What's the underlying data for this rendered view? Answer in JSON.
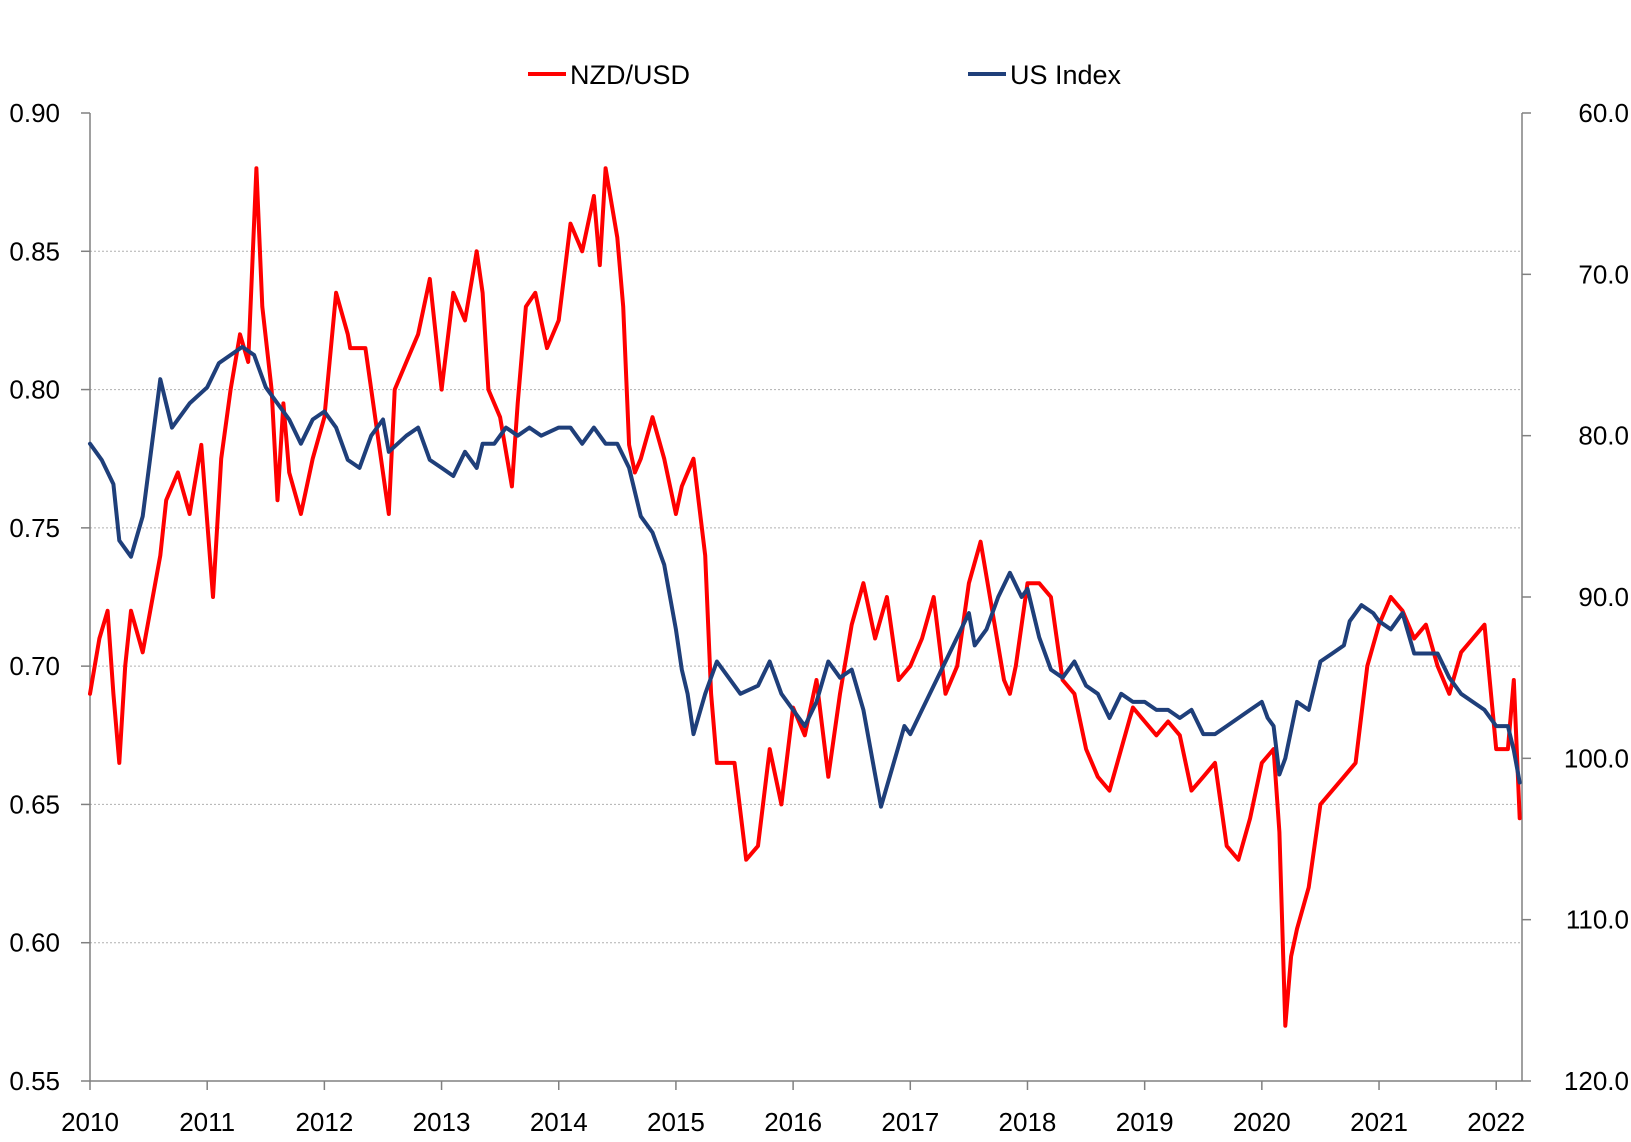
{
  "chart_data": {
    "type": "line",
    "title": "",
    "xlabel": "",
    "ylabel": "",
    "legend": {
      "placement": "top-center"
    },
    "grid": true,
    "x_axis": {
      "range": [
        2010.0,
        2022.22
      ],
      "ticks": [
        "2010",
        "2011",
        "2012",
        "2013",
        "2014",
        "2015",
        "2016",
        "2017",
        "2018",
        "2019",
        "2020",
        "2021",
        "2022"
      ]
    },
    "y_left": {
      "range": [
        0.55,
        0.9
      ],
      "ticks": [
        "0.90",
        "0.85",
        "0.80",
        "0.75",
        "0.70",
        "0.65",
        "0.60",
        "0.55"
      ]
    },
    "y_right": {
      "range": [
        60.0,
        120.0
      ],
      "inverted": true,
      "ticks": [
        "60.0",
        "70.0",
        "80.0",
        "90.0",
        "100.0",
        "110.0",
        "120.0"
      ]
    },
    "series": [
      {
        "name": "NZD/USD",
        "axis": "left",
        "color": "#ff0000",
        "x": [
          2010.0,
          2010.08,
          2010.15,
          2010.2,
          2010.25,
          2010.3,
          2010.35,
          2010.45,
          2010.6,
          2010.65,
          2010.75,
          2010.85,
          2010.95,
          2011.05,
          2011.12,
          2011.2,
          2011.28,
          2011.35,
          2011.42,
          2011.47,
          2011.55,
          2011.6,
          2011.65,
          2011.7,
          2011.8,
          2011.9,
          2012.0,
          2012.1,
          2012.2,
          2012.22,
          2012.35,
          2012.45,
          2012.55,
          2012.6,
          2012.7,
          2012.8,
          2012.9,
          2013.0,
          2013.1,
          2013.2,
          2013.3,
          2013.35,
          2013.4,
          2013.5,
          2013.6,
          2013.65,
          2013.72,
          2013.8,
          2013.9,
          2014.0,
          2014.1,
          2014.2,
          2014.3,
          2014.35,
          2014.4,
          2014.5,
          2014.55,
          2014.6,
          2014.65,
          2014.7,
          2014.8,
          2014.9,
          2015.0,
          2015.05,
          2015.15,
          2015.25,
          2015.3,
          2015.35,
          2015.5,
          2015.6,
          2015.7,
          2015.8,
          2015.9,
          2016.0,
          2016.1,
          2016.2,
          2016.3,
          2016.4,
          2016.5,
          2016.6,
          2016.7,
          2016.8,
          2016.9,
          2017.0,
          2017.1,
          2017.2,
          2017.3,
          2017.4,
          2017.5,
          2017.6,
          2017.7,
          2017.8,
          2017.85,
          2017.9,
          2018.0,
          2018.1,
          2018.2,
          2018.3,
          2018.4,
          2018.5,
          2018.6,
          2018.7,
          2018.8,
          2018.9,
          2019.0,
          2019.1,
          2019.2,
          2019.3,
          2019.4,
          2019.5,
          2019.6,
          2019.7,
          2019.8,
          2019.9,
          2020.0,
          2020.1,
          2020.15,
          2020.2,
          2020.25,
          2020.3,
          2020.4,
          2020.5,
          2020.6,
          2020.7,
          2020.8,
          2020.9,
          2021.0,
          2021.1,
          2021.2,
          2021.3,
          2021.4,
          2021.5,
          2021.6,
          2021.7,
          2021.8,
          2021.9,
          2022.0,
          2022.1,
          2022.15,
          2022.2
        ],
        "values": [
          0.69,
          0.71,
          0.72,
          0.69,
          0.665,
          0.7,
          0.72,
          0.705,
          0.74,
          0.76,
          0.77,
          0.755,
          0.78,
          0.725,
          0.775,
          0.8,
          0.82,
          0.81,
          0.88,
          0.83,
          0.8,
          0.76,
          0.795,
          0.77,
          0.755,
          0.775,
          0.79,
          0.835,
          0.82,
          0.815,
          0.815,
          0.785,
          0.755,
          0.8,
          0.81,
          0.82,
          0.84,
          0.8,
          0.835,
          0.825,
          0.85,
          0.835,
          0.8,
          0.79,
          0.765,
          0.795,
          0.83,
          0.835,
          0.815,
          0.825,
          0.86,
          0.85,
          0.87,
          0.845,
          0.88,
          0.855,
          0.83,
          0.78,
          0.77,
          0.775,
          0.79,
          0.775,
          0.755,
          0.765,
          0.775,
          0.74,
          0.69,
          0.665,
          0.665,
          0.63,
          0.635,
          0.67,
          0.65,
          0.685,
          0.675,
          0.695,
          0.66,
          0.69,
          0.715,
          0.73,
          0.71,
          0.725,
          0.695,
          0.7,
          0.71,
          0.725,
          0.69,
          0.7,
          0.73,
          0.745,
          0.72,
          0.695,
          0.69,
          0.7,
          0.73,
          0.73,
          0.725,
          0.695,
          0.69,
          0.67,
          0.66,
          0.655,
          0.67,
          0.685,
          0.68,
          0.675,
          0.68,
          0.675,
          0.655,
          0.66,
          0.665,
          0.635,
          0.63,
          0.645,
          0.665,
          0.67,
          0.64,
          0.57,
          0.595,
          0.605,
          0.62,
          0.65,
          0.655,
          0.66,
          0.665,
          0.7,
          0.715,
          0.725,
          0.72,
          0.71,
          0.715,
          0.7,
          0.69,
          0.705,
          0.71,
          0.715,
          0.67,
          0.67,
          0.695,
          0.645
        ]
      },
      {
        "name": "US Index",
        "axis": "right",
        "color": "#1f3f7a",
        "x": [
          2010.0,
          2010.1,
          2010.2,
          2010.25,
          2010.35,
          2010.45,
          2010.6,
          2010.7,
          2010.85,
          2011.0,
          2011.1,
          2011.2,
          2011.3,
          2011.4,
          2011.5,
          2011.6,
          2011.7,
          2011.8,
          2011.9,
          2012.0,
          2012.1,
          2012.2,
          2012.3,
          2012.4,
          2012.5,
          2012.55,
          2012.7,
          2012.8,
          2012.9,
          2013.0,
          2013.1,
          2013.2,
          2013.3,
          2013.35,
          2013.45,
          2013.55,
          2013.65,
          2013.75,
          2013.85,
          2014.0,
          2014.1,
          2014.2,
          2014.3,
          2014.4,
          2014.5,
          2014.6,
          2014.7,
          2014.8,
          2014.9,
          2015.0,
          2015.05,
          2015.1,
          2015.15,
          2015.25,
          2015.35,
          2015.45,
          2015.55,
          2015.7,
          2015.8,
          2015.9,
          2016.0,
          2016.1,
          2016.2,
          2016.3,
          2016.4,
          2016.5,
          2016.6,
          2016.7,
          2016.75,
          2016.85,
          2016.95,
          2017.0,
          2017.1,
          2017.2,
          2017.3,
          2017.4,
          2017.5,
          2017.55,
          2017.65,
          2017.75,
          2017.85,
          2017.95,
          2018.0,
          2018.1,
          2018.2,
          2018.3,
          2018.4,
          2018.5,
          2018.6,
          2018.7,
          2018.8,
          2018.9,
          2019.0,
          2019.1,
          2019.2,
          2019.3,
          2019.4,
          2019.5,
          2019.6,
          2019.7,
          2019.8,
          2019.9,
          2020.0,
          2020.05,
          2020.1,
          2020.15,
          2020.2,
          2020.3,
          2020.4,
          2020.5,
          2020.6,
          2020.7,
          2020.75,
          2020.85,
          2020.95,
          2021.0,
          2021.1,
          2021.2,
          2021.3,
          2021.4,
          2021.5,
          2021.6,
          2021.7,
          2021.8,
          2021.9,
          2022.0,
          2022.1,
          2022.15,
          2022.2
        ],
        "values": [
          80.5,
          81.5,
          83.0,
          86.5,
          87.5,
          85.0,
          76.5,
          79.5,
          78.0,
          77.0,
          75.5,
          75.0,
          74.5,
          75.0,
          77.0,
          78.0,
          79.0,
          80.5,
          79.0,
          78.5,
          79.5,
          81.5,
          82.0,
          80.0,
          79.0,
          81.0,
          80.0,
          79.5,
          81.5,
          82.0,
          82.5,
          81.0,
          82.0,
          80.5,
          80.5,
          79.5,
          80.0,
          79.5,
          80.0,
          79.5,
          79.5,
          80.5,
          79.5,
          80.5,
          80.5,
          82.0,
          85.0,
          86.0,
          88.0,
          92.0,
          94.5,
          96.0,
          98.5,
          96.0,
          94.0,
          95.0,
          96.0,
          95.5,
          94.0,
          96.0,
          97.0,
          98.0,
          96.5,
          94.0,
          95.0,
          94.5,
          97.0,
          101.0,
          103.0,
          100.5,
          98.0,
          98.5,
          97.0,
          95.5,
          94.0,
          92.5,
          91.0,
          93.0,
          92.0,
          90.0,
          88.5,
          90.0,
          89.5,
          92.5,
          94.5,
          95.0,
          94.0,
          95.5,
          96.0,
          97.5,
          96.0,
          96.5,
          96.5,
          97.0,
          97.0,
          97.5,
          97.0,
          98.5,
          98.5,
          98.0,
          97.5,
          97.0,
          96.5,
          97.5,
          98.0,
          101.0,
          100.0,
          96.5,
          97.0,
          94.0,
          93.5,
          93.0,
          91.5,
          90.5,
          91.0,
          91.5,
          92.0,
          91.0,
          93.5,
          93.5,
          93.5,
          95.0,
          96.0,
          96.5,
          97.0,
          98.0,
          98.0,
          99.5,
          101.5
        ]
      }
    ]
  }
}
